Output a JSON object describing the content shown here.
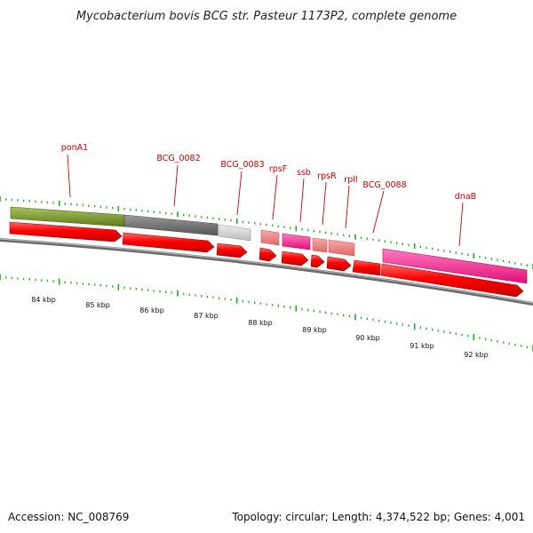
{
  "title": "Mycobacterium bovis BCG str. Pasteur 1173P2, complete genome",
  "footer": {
    "accession": "Accession: NC_008769",
    "stats": "Topology: circular; Length: 4,374,522 bp; Genes: 4,001"
  },
  "scale_labels": [
    "84 kbp",
    "85 kbp",
    "86 kbp",
    "87 kbp",
    "88 kbp",
    "89 kbp",
    "90 kbp",
    "91 kbp",
    "92 kbp"
  ],
  "gene_labels": [
    "ponA1",
    "BCG_0082",
    "BCG_0083",
    "rpsF",
    "ssb",
    "rpsR",
    "rplI",
    "BCG_0088",
    "dnaB"
  ],
  "colors": {
    "tick": "#22aa22",
    "backbone": "#8a8a8a",
    "cds_arrow": "#ff0000",
    "label": "#cc0000",
    "functional_class": [
      "#7a9a2e",
      "#6e6e6e",
      "#cccccc",
      "#f08080",
      "#ff1493"
    ]
  }
}
